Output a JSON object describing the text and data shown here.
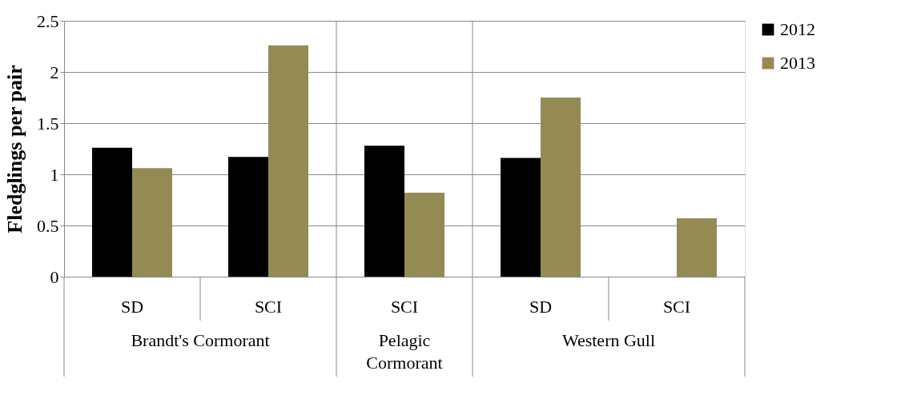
{
  "chart_data": {
    "type": "bar",
    "ylabel": "Fledglings per pair",
    "categories": [
      "SD",
      "SCI",
      "SCI",
      "SD",
      "SCI"
    ],
    "series": [
      {
        "name": "2012",
        "color": "#000000",
        "values": [
          1.26,
          1.17,
          1.28,
          1.16,
          null
        ]
      },
      {
        "name": "2013",
        "color": "#948a54",
        "values": [
          1.06,
          2.26,
          0.82,
          1.75,
          0.57
        ]
      }
    ],
    "annotations": [
      "Brandt's Cormorant",
      "Pelagic Cormorant",
      "Western Gull"
    ],
    "ylim": [
      0,
      2.5
    ],
    "yticks": [
      0,
      0.5,
      1,
      1.5,
      2,
      2.5
    ],
    "grid": "y",
    "legend": "right"
  }
}
